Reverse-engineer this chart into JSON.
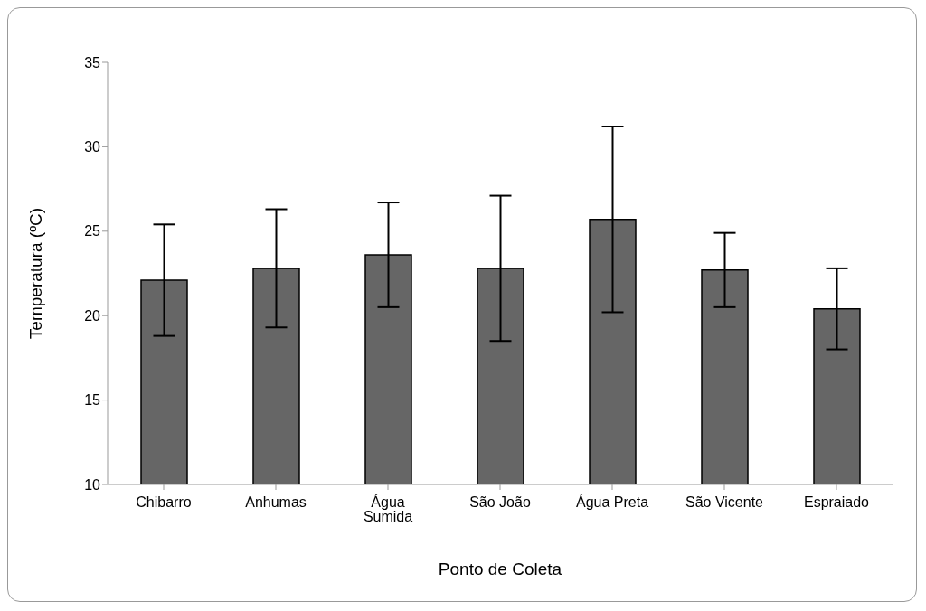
{
  "chart_data": {
    "type": "bar",
    "xlabel": "Ponto de Coleta",
    "ylabel": "Temperatura (ºC)",
    "categories": [
      "Chibarro",
      "Anhumas",
      "Água Sumida",
      "São João",
      "Água Preta",
      "São Vicente",
      "Espraiado"
    ],
    "values": [
      22.1,
      22.8,
      23.6,
      22.8,
      25.7,
      22.7,
      20.4
    ],
    "errors": [
      3.3,
      3.5,
      3.1,
      4.3,
      5.5,
      2.2,
      2.4
    ],
    "color": "#666666",
    "ylim": [
      10,
      35
    ],
    "yticks": [
      10,
      15,
      20,
      25,
      30,
      35
    ],
    "grid": false
  }
}
